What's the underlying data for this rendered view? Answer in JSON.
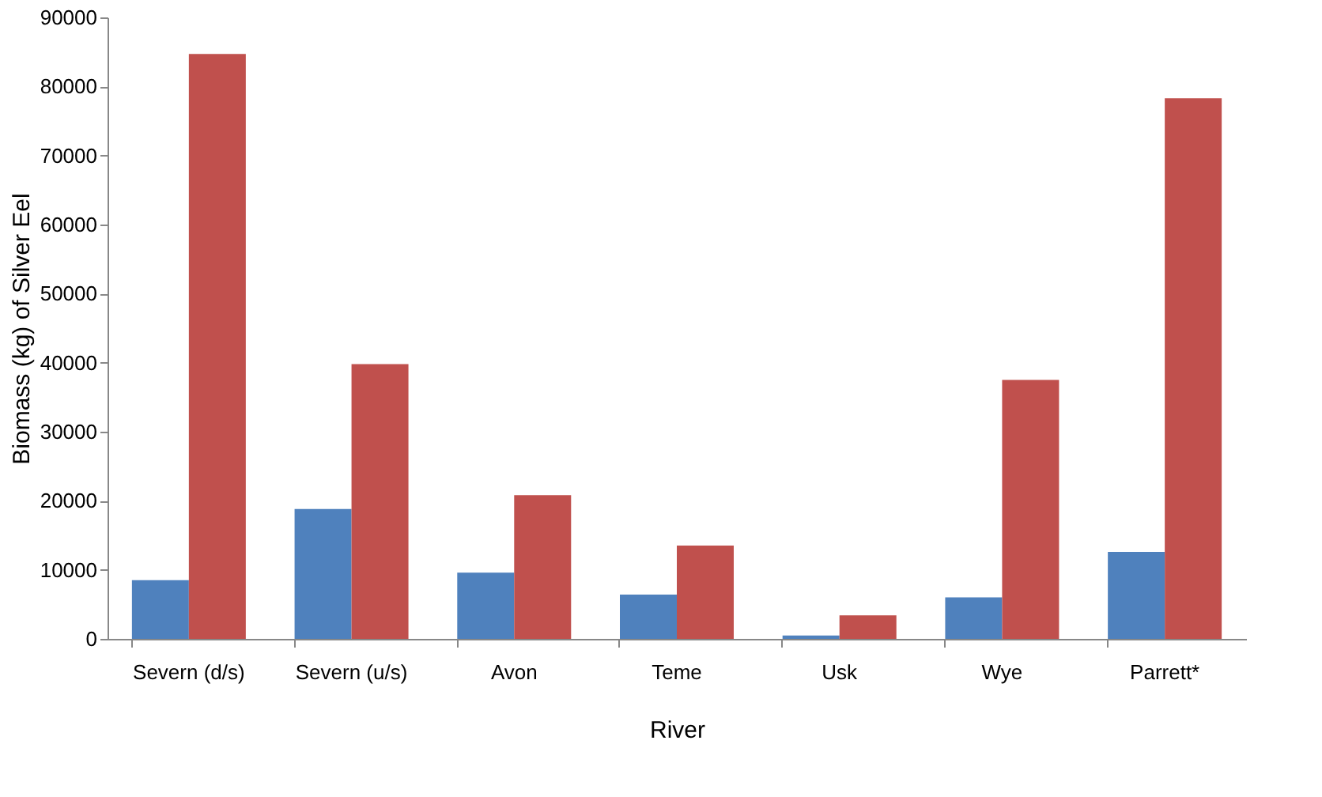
{
  "chart_data": {
    "type": "bar",
    "xlabel": "River",
    "ylabel": "Biomass (kg) of Silver Eel",
    "categories": [
      "Severn (d/s)",
      "Severn (u/s)",
      "Avon",
      "Teme",
      "Usk",
      "Wye",
      "Parrett*"
    ],
    "series": [
      {
        "color": "#4f81bd",
        "values": [
          8500,
          18800,
          9600,
          6400,
          500,
          6000,
          12600
        ]
      },
      {
        "color": "#c0504d",
        "values": [
          84700,
          39800,
          20800,
          13500,
          3400,
          37500,
          78300
        ]
      }
    ],
    "ylim": [
      0,
      90000
    ],
    "yticks": [
      0,
      10000,
      20000,
      30000,
      40000,
      50000,
      60000,
      70000,
      80000,
      90000
    ],
    "grid": false,
    "legend": false
  }
}
